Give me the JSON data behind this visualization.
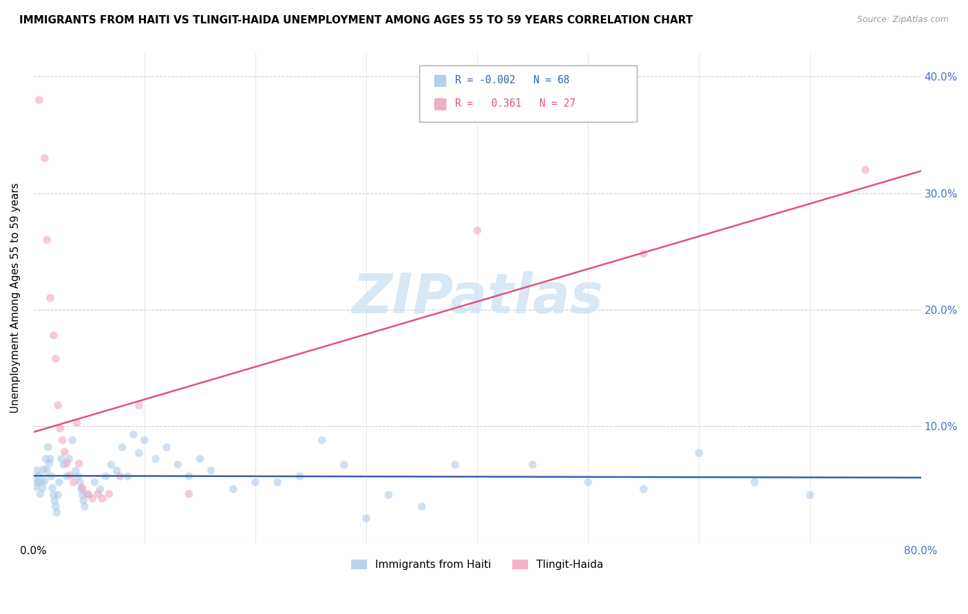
{
  "title": "IMMIGRANTS FROM HAITI VS TLINGIT-HAIDA UNEMPLOYMENT AMONG AGES 55 TO 59 YEARS CORRELATION CHART",
  "source": "Source: ZipAtlas.com",
  "ylabel": "Unemployment Among Ages 55 to 59 years",
  "xlim": [
    0,
    0.8
  ],
  "ylim": [
    0,
    0.42
  ],
  "yticks": [
    0.0,
    0.1,
    0.2,
    0.3,
    0.4
  ],
  "ytick_labels": [
    "",
    "10.0%",
    "20.0%",
    "30.0%",
    "40.0%"
  ],
  "xtick_vals": [
    0.0,
    0.1,
    0.2,
    0.3,
    0.4,
    0.5,
    0.6,
    0.7,
    0.8
  ],
  "xtick_labels": [
    "0.0%",
    "",
    "",
    "",
    "",
    "",
    "",
    "",
    "80.0%"
  ],
  "haiti_color": "#a8c8e8",
  "tlingit_color": "#f0a0b8",
  "haiti_line_color": "#3060b0",
  "tlingit_line_color": "#e05080",
  "watermark_text": "ZIPatlas",
  "watermark_color": "#c8dff0",
  "legend_r1": "R = -0.002",
  "legend_n1": "N = 68",
  "legend_r2": "R =   0.361",
  "legend_n2": "N = 27",
  "haiti_points": [
    [
      0.001,
      0.055
    ],
    [
      0.002,
      0.048
    ],
    [
      0.003,
      0.062
    ],
    [
      0.004,
      0.052
    ],
    [
      0.005,
      0.058
    ],
    [
      0.006,
      0.042
    ],
    [
      0.007,
      0.052
    ],
    [
      0.008,
      0.047
    ],
    [
      0.009,
      0.063
    ],
    [
      0.01,
      0.053
    ],
    [
      0.011,
      0.072
    ],
    [
      0.012,
      0.062
    ],
    [
      0.013,
      0.082
    ],
    [
      0.014,
      0.068
    ],
    [
      0.015,
      0.072
    ],
    [
      0.016,
      0.057
    ],
    [
      0.017,
      0.047
    ],
    [
      0.018,
      0.041
    ],
    [
      0.019,
      0.036
    ],
    [
      0.02,
      0.031
    ],
    [
      0.021,
      0.026
    ],
    [
      0.022,
      0.041
    ],
    [
      0.023,
      0.052
    ],
    [
      0.025,
      0.072
    ],
    [
      0.027,
      0.067
    ],
    [
      0.03,
      0.057
    ],
    [
      0.032,
      0.072
    ],
    [
      0.035,
      0.088
    ],
    [
      0.038,
      0.062
    ],
    [
      0.04,
      0.057
    ],
    [
      0.042,
      0.052
    ],
    [
      0.043,
      0.046
    ],
    [
      0.044,
      0.041
    ],
    [
      0.045,
      0.036
    ],
    [
      0.046,
      0.031
    ],
    [
      0.05,
      0.041
    ],
    [
      0.055,
      0.052
    ],
    [
      0.06,
      0.046
    ],
    [
      0.065,
      0.057
    ],
    [
      0.07,
      0.067
    ],
    [
      0.075,
      0.062
    ],
    [
      0.08,
      0.082
    ],
    [
      0.085,
      0.057
    ],
    [
      0.09,
      0.093
    ],
    [
      0.095,
      0.077
    ],
    [
      0.1,
      0.088
    ],
    [
      0.11,
      0.072
    ],
    [
      0.12,
      0.082
    ],
    [
      0.13,
      0.067
    ],
    [
      0.14,
      0.057
    ],
    [
      0.15,
      0.072
    ],
    [
      0.16,
      0.062
    ],
    [
      0.18,
      0.046
    ],
    [
      0.2,
      0.052
    ],
    [
      0.22,
      0.052
    ],
    [
      0.24,
      0.057
    ],
    [
      0.26,
      0.088
    ],
    [
      0.28,
      0.067
    ],
    [
      0.3,
      0.021
    ],
    [
      0.32,
      0.041
    ],
    [
      0.35,
      0.031
    ],
    [
      0.38,
      0.067
    ],
    [
      0.45,
      0.067
    ],
    [
      0.5,
      0.052
    ],
    [
      0.55,
      0.046
    ],
    [
      0.6,
      0.077
    ],
    [
      0.65,
      0.052
    ],
    [
      0.7,
      0.041
    ]
  ],
  "tlingit_points": [
    [
      0.005,
      0.38
    ],
    [
      0.01,
      0.33
    ],
    [
      0.012,
      0.26
    ],
    [
      0.015,
      0.21
    ],
    [
      0.018,
      0.178
    ],
    [
      0.02,
      0.158
    ],
    [
      0.022,
      0.118
    ],
    [
      0.024,
      0.098
    ],
    [
      0.026,
      0.088
    ],
    [
      0.028,
      0.078
    ],
    [
      0.03,
      0.068
    ],
    [
      0.033,
      0.058
    ],
    [
      0.036,
      0.052
    ],
    [
      0.039,
      0.103
    ],
    [
      0.041,
      0.068
    ],
    [
      0.044,
      0.047
    ],
    [
      0.048,
      0.042
    ],
    [
      0.053,
      0.038
    ],
    [
      0.058,
      0.042
    ],
    [
      0.062,
      0.038
    ],
    [
      0.068,
      0.042
    ],
    [
      0.078,
      0.057
    ],
    [
      0.095,
      0.118
    ],
    [
      0.14,
      0.042
    ],
    [
      0.4,
      0.268
    ],
    [
      0.55,
      0.248
    ],
    [
      0.75,
      0.32
    ]
  ],
  "haiti_line": {
    "x0": 0.0,
    "x1": 0.8,
    "y0_intercept": 0.0575,
    "slope": -0.002
  },
  "tlingit_line": {
    "x0": 0.0,
    "x1": 0.8,
    "y0_intercept": 0.095,
    "slope": 0.28
  }
}
